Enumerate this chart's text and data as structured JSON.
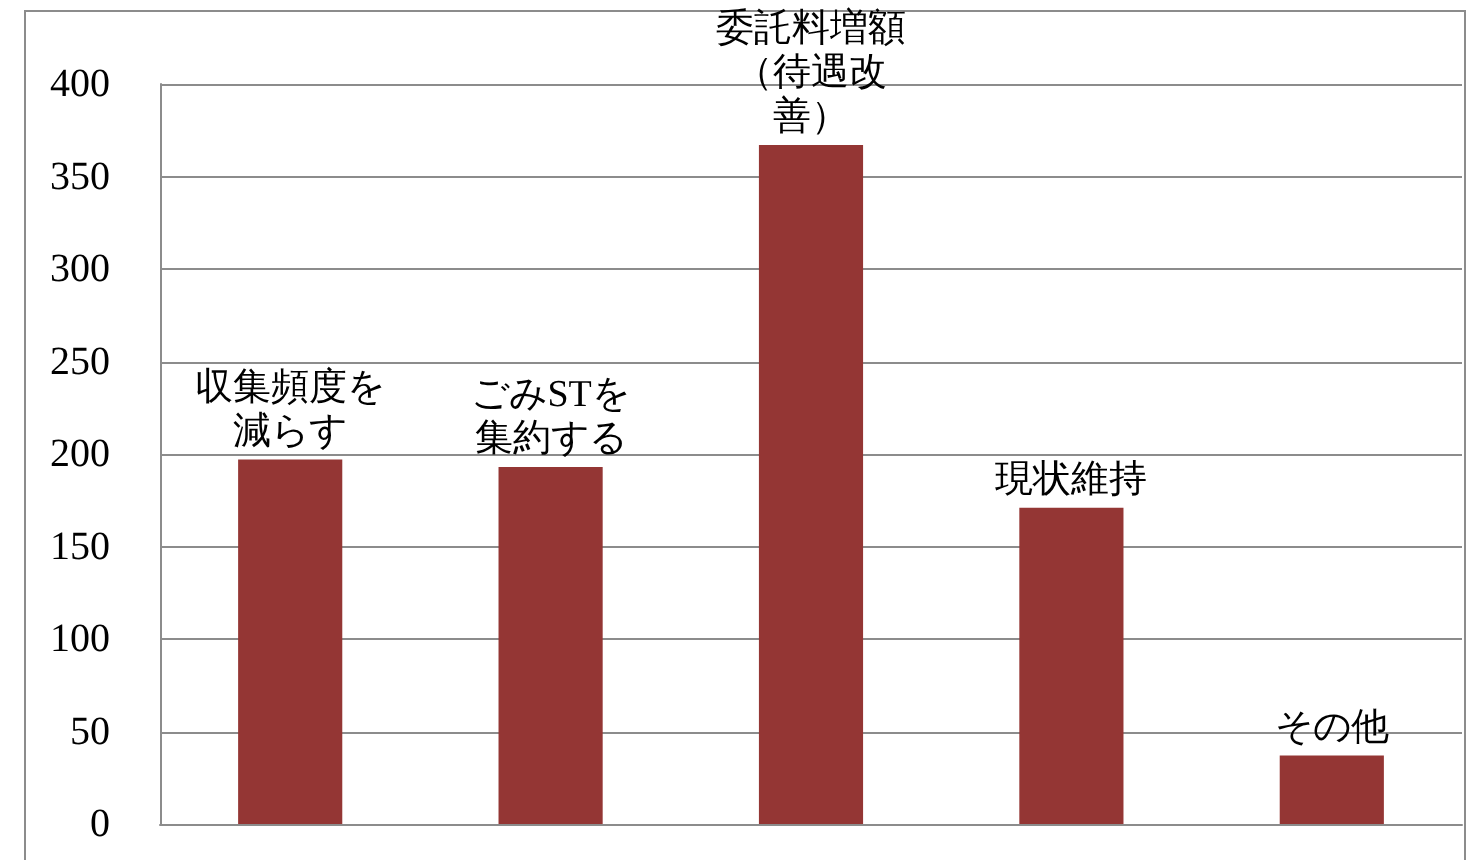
{
  "chart_data": {
    "type": "bar",
    "categories": [
      "収集頻度を減らす",
      "ごみSTを集約する",
      "委託料増額（待遇改善）",
      "現状維持",
      "その他"
    ],
    "values": [
      197,
      193,
      367,
      171,
      37
    ],
    "color": "#943634",
    "ylim": [
      0,
      400
    ],
    "yticks": [
      0,
      50,
      100,
      150,
      200,
      250,
      300,
      350,
      400
    ],
    "grid": "y"
  }
}
